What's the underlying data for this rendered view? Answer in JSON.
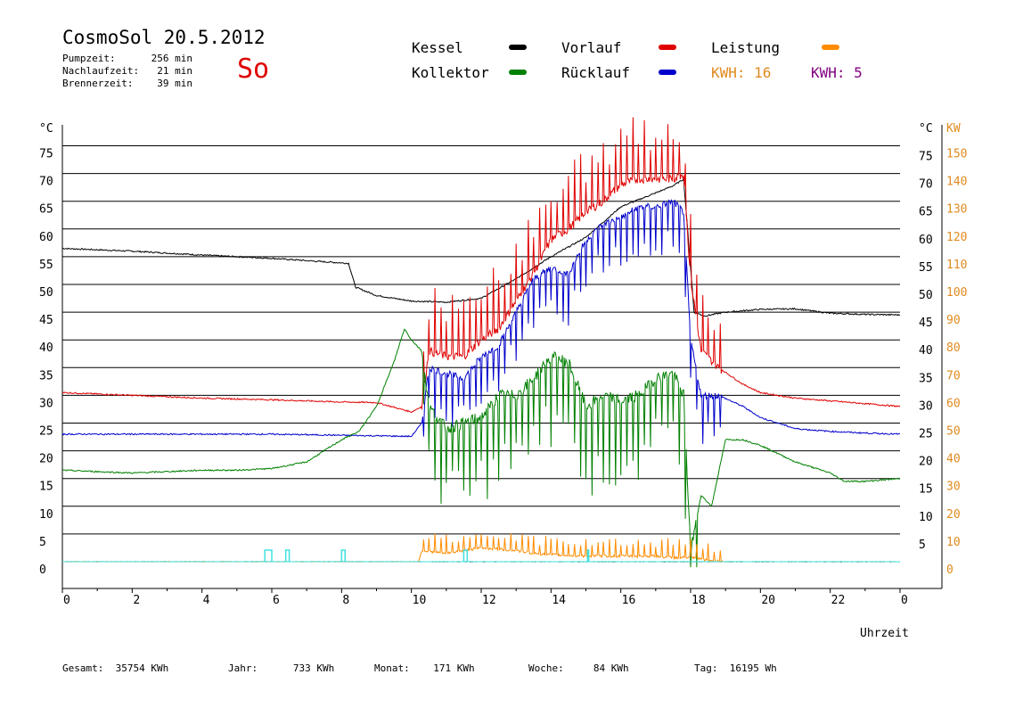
{
  "header": {
    "title": "CosmoSol 20.5.2012",
    "day": "So",
    "stats": [
      {
        "label": "Pumpzeit:",
        "value": "256 min"
      },
      {
        "label": "Nachlaufzeit:",
        "value": "21 min"
      },
      {
        "label": "Brennerzeit:",
        "value": "39 min"
      }
    ]
  },
  "legend": {
    "kessel": {
      "label": "Kessel",
      "color": "#000000"
    },
    "vorlauf": {
      "label": "Vorlauf",
      "color": "#e00000"
    },
    "leistung": {
      "label": "Leistung",
      "color": "#ff8c00"
    },
    "kollektor": {
      "label": "Kollektor",
      "color": "#008000"
    },
    "ruecklauf": {
      "label": "Rücklauf",
      "color": "#0000cc"
    },
    "kwh1": {
      "label": "KWH:",
      "value": "16",
      "color": "#e08a1e"
    },
    "kwh2": {
      "label": "KWH:",
      "value": "5",
      "color": "#800080"
    }
  },
  "footer": {
    "gesamt": {
      "label": "Gesamt:",
      "value": "35754 KWh"
    },
    "jahr": {
      "label": "Jahr:",
      "value": "733 KWh"
    },
    "monat": {
      "label": "Monat:",
      "value": "171 KWh"
    },
    "woche": {
      "label": "Woche:",
      "value": "84 KWh"
    },
    "tag": {
      "label": "Tag:",
      "value": "16195 Wh"
    }
  },
  "chart_data": {
    "type": "line",
    "xlabel": "Uhrzeit",
    "ylabel_left": "°C",
    "ylabel_right_temp": "°C",
    "ylabel_right_power": "KW",
    "xlim": [
      0,
      24
    ],
    "ylim": [
      0,
      75
    ],
    "x_ticks": [
      "0",
      "2",
      "4",
      "6",
      "8",
      "10",
      "12",
      "14",
      "16",
      "18",
      "20",
      "22",
      "0"
    ],
    "y_ticks": [
      0,
      5,
      10,
      15,
      20,
      25,
      30,
      35,
      40,
      45,
      50,
      55,
      60,
      65,
      70,
      75
    ],
    "y_ticks_right_temp": [
      5,
      10,
      15,
      20,
      25,
      30,
      35,
      40,
      45,
      50,
      55,
      60,
      65,
      70,
      75
    ],
    "y_ticks_power": [
      0,
      10,
      20,
      30,
      40,
      50,
      60,
      70,
      80,
      90,
      100,
      110,
      120,
      130,
      140,
      150
    ],
    "grid": true,
    "series": [
      {
        "name": "Kessel",
        "color": "#000000",
        "x": [
          0,
          2,
          4,
          6,
          8.2,
          8.4,
          9,
          10,
          11,
          12,
          13,
          14,
          15,
          16,
          17,
          17.5,
          17.8,
          18.1,
          18.4,
          19,
          20,
          21,
          22,
          23,
          24
        ],
        "y": [
          56.5,
          56,
          55.3,
          54.7,
          53.8,
          49.5,
          48,
          47,
          46.8,
          47.5,
          51,
          55,
          58.5,
          64,
          66.5,
          67.8,
          69,
          45,
          44.3,
          45,
          45.5,
          45.6,
          44.8,
          44.6,
          44.5
        ],
        "spikes": false
      },
      {
        "name": "Vorlauf",
        "color": "#e00000",
        "x": [
          0,
          2,
          4,
          6,
          8,
          9,
          10,
          10.3,
          10.5,
          11,
          11.5,
          12,
          12.5,
          13,
          13.5,
          14,
          14.5,
          15,
          15.5,
          16,
          16.5,
          17,
          17.5,
          17.8,
          18,
          18.3,
          18.8,
          19.5,
          20,
          21,
          22,
          23,
          24
        ],
        "y": [
          30.5,
          30,
          29.5,
          29.2,
          28.8,
          28.7,
          27,
          28,
          38,
          37,
          37,
          40,
          42,
          47,
          52,
          58,
          60,
          63,
          65,
          68,
          69,
          69,
          69,
          70,
          51,
          38,
          35,
          32,
          30.5,
          29.5,
          29,
          28.5,
          28
        ],
        "spikes": true,
        "spike_range": [
          10.3,
          18.9
        ],
        "spike_amp": 10
      },
      {
        "name": "Rücklauf",
        "color": "#0000cc",
        "x": [
          0,
          2,
          4,
          6,
          8,
          9,
          10,
          10.3,
          10.5,
          11,
          11.5,
          12,
          12.5,
          13,
          13.5,
          14,
          14.5,
          15,
          15.5,
          16,
          16.5,
          17,
          17.5,
          17.8,
          18,
          18.3,
          18.8,
          19.5,
          20,
          21,
          22,
          23,
          24
        ],
        "y": [
          23,
          23,
          23,
          23,
          22.8,
          22.7,
          22.6,
          25,
          35,
          34,
          33,
          37,
          39,
          45,
          51,
          53,
          52,
          58,
          61,
          62,
          64,
          64,
          65,
          63,
          40,
          30,
          30,
          28,
          26,
          24,
          23.5,
          23.2,
          23
        ],
        "spikes": true,
        "spike_range": [
          10.3,
          18.9
        ],
        "spike_amp": -8
      },
      {
        "name": "Kollektor",
        "color": "#008000",
        "x": [
          0,
          2,
          4,
          5,
          6,
          7,
          8,
          8.5,
          9,
          9.5,
          9.8,
          10,
          10.3,
          10.5,
          11,
          11.5,
          12,
          12.5,
          13,
          13.5,
          14,
          14.5,
          15,
          15.5,
          16,
          16.5,
          17,
          17.5,
          17.8,
          18,
          18.3,
          18.6,
          19,
          19.5,
          20,
          20.5,
          21,
          22,
          22.4,
          23,
          24
        ],
        "y": [
          16.5,
          16,
          16.5,
          16.5,
          16.8,
          18,
          22,
          23.5,
          28,
          36,
          42,
          40,
          38,
          28,
          24,
          25,
          26,
          30,
          30,
          33,
          37,
          36,
          28,
          30,
          29,
          30,
          33,
          34,
          30,
          2,
          12,
          10,
          22,
          22,
          21,
          19.5,
          18,
          16,
          14.5,
          14.5,
          15
        ],
        "spikes": true,
        "spike_range": [
          10.3,
          18.2
        ],
        "spike_amp": -14
      },
      {
        "name": "Leistung",
        "color": "#ff8c00",
        "axis": "power",
        "x": [
          0,
          10.2,
          10.3,
          11,
          12,
          13,
          13.5,
          14,
          15,
          15.5,
          16,
          16.5,
          17,
          17.5,
          18,
          18.5,
          18.9,
          19
        ],
        "y": [
          0,
          0,
          4,
          3,
          5,
          4,
          3,
          2.5,
          2,
          2,
          2,
          2,
          2,
          1.5,
          1.5,
          0.5,
          0,
          0
        ],
        "spikes": true,
        "spike_range": [
          10.3,
          18.9
        ],
        "spike_amp": 6
      },
      {
        "name": "Brenner",
        "color": "#40e0e0",
        "axis": "power",
        "x": [
          0,
          24
        ],
        "y": [
          0,
          0
        ],
        "pulses": [
          [
            5.8,
            6.0
          ],
          [
            6.4,
            6.5
          ],
          [
            8.0,
            8.1
          ],
          [
            11.5,
            11.6
          ],
          [
            15.05,
            15.08
          ]
        ]
      }
    ]
  }
}
